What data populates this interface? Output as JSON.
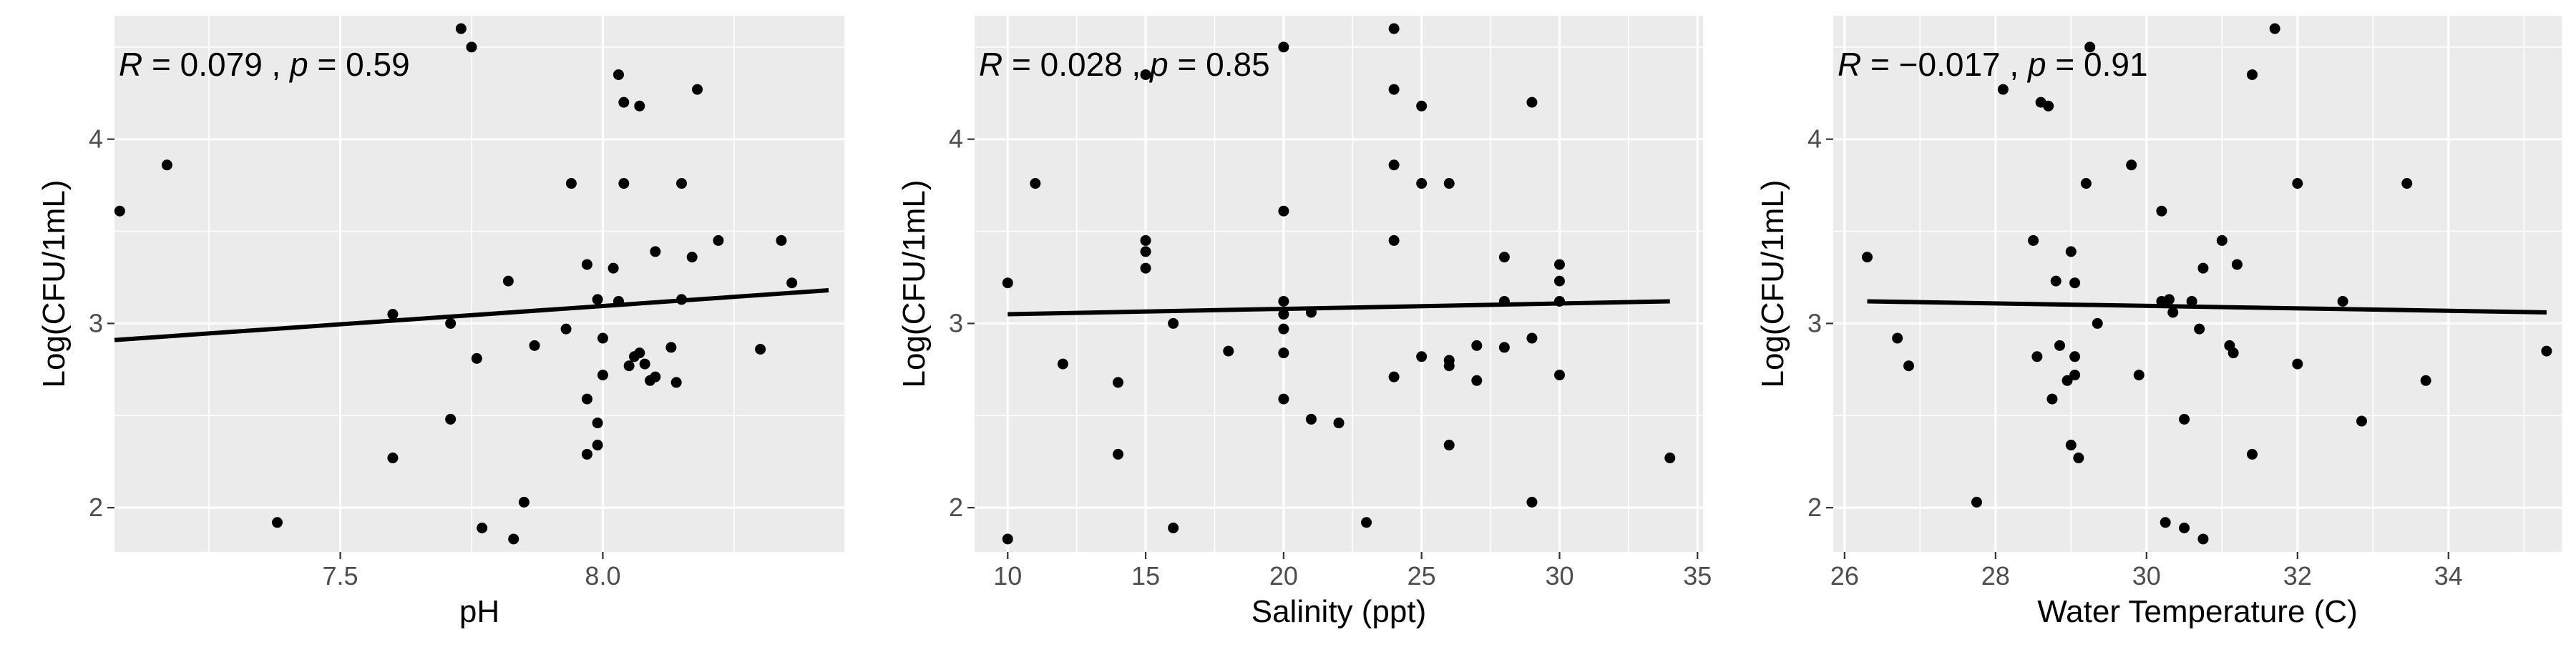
{
  "chart_data": [
    {
      "type": "scatter",
      "xlabel": "pH",
      "ylabel": "Log(CFU/1mL)",
      "annotation": {
        "r_label": "R",
        "r_value": "= 0.079",
        "sep": " , ",
        "p_label": "p",
        "p_value": "= 0.59"
      },
      "xlim": [
        7.07,
        8.46
      ],
      "ylim": [
        1.76,
        4.67
      ],
      "x_ticks": [
        7.5,
        8.0
      ],
      "x_tick_labels": [
        "7.5",
        "8.0"
      ],
      "y_ticks": [
        2,
        3,
        4
      ],
      "y_tick_labels": [
        "2",
        "3",
        "4"
      ],
      "grid": true,
      "fit_line": {
        "x": [
          7.07,
          8.43
        ],
        "y": [
          2.91,
          3.18
        ]
      },
      "points": [
        [
          7.08,
          3.61
        ],
        [
          7.17,
          3.86
        ],
        [
          7.38,
          1.92
        ],
        [
          7.6,
          3.05
        ],
        [
          7.6,
          2.27
        ],
        [
          7.71,
          3.0
        ],
        [
          7.71,
          2.48
        ],
        [
          7.73,
          4.6
        ],
        [
          7.75,
          4.5
        ],
        [
          7.76,
          2.81
        ],
        [
          7.77,
          1.89
        ],
        [
          7.82,
          3.23
        ],
        [
          7.83,
          1.83
        ],
        [
          7.85,
          2.03
        ],
        [
          7.87,
          2.88
        ],
        [
          7.93,
          2.97
        ],
        [
          7.94,
          3.76
        ],
        [
          7.97,
          3.32
        ],
        [
          7.97,
          2.59
        ],
        [
          7.97,
          2.29
        ],
        [
          7.99,
          3.13
        ],
        [
          7.99,
          2.46
        ],
        [
          7.99,
          2.34
        ],
        [
          8.0,
          2.92
        ],
        [
          8.0,
          2.72
        ],
        [
          8.02,
          3.3
        ],
        [
          8.03,
          4.35
        ],
        [
          8.03,
          3.12
        ],
        [
          8.04,
          4.2
        ],
        [
          8.04,
          3.76
        ],
        [
          8.05,
          2.77
        ],
        [
          8.06,
          2.82
        ],
        [
          8.07,
          4.18
        ],
        [
          8.07,
          2.84
        ],
        [
          8.08,
          2.78
        ],
        [
          8.09,
          2.69
        ],
        [
          8.1,
          3.39
        ],
        [
          8.1,
          2.71
        ],
        [
          8.13,
          2.87
        ],
        [
          8.14,
          2.68
        ],
        [
          8.15,
          3.76
        ],
        [
          8.15,
          3.13
        ],
        [
          8.17,
          3.36
        ],
        [
          8.18,
          4.27
        ],
        [
          8.22,
          3.45
        ],
        [
          8.3,
          2.86
        ],
        [
          8.34,
          3.45
        ],
        [
          8.36,
          3.22
        ]
      ]
    },
    {
      "type": "scatter",
      "xlabel": "Salinity (ppt)",
      "ylabel": "Log(CFU/1mL)",
      "annotation": {
        "r_label": "R",
        "r_value": "= 0.028",
        "sep": " , ",
        "p_label": "p",
        "p_value": "= 0.85"
      },
      "xlim": [
        8.8,
        35.2
      ],
      "ylim": [
        1.76,
        4.67
      ],
      "x_ticks": [
        10,
        15,
        20,
        25,
        30,
        35
      ],
      "x_tick_labels": [
        "10",
        "15",
        "20",
        "25",
        "30",
        "35"
      ],
      "y_ticks": [
        2,
        3,
        4
      ],
      "y_tick_labels": [
        "2",
        "3",
        "4"
      ],
      "grid": true,
      "fit_line": {
        "x": [
          10,
          34
        ],
        "y": [
          3.05,
          3.12
        ]
      },
      "points": [
        [
          10,
          3.22
        ],
        [
          10,
          1.83
        ],
        [
          11,
          3.76
        ],
        [
          12,
          2.78
        ],
        [
          14,
          2.68
        ],
        [
          14,
          2.29
        ],
        [
          15,
          4.35
        ],
        [
          15,
          3.45
        ],
        [
          15,
          3.39
        ],
        [
          15,
          3.3
        ],
        [
          16,
          3.0
        ],
        [
          16,
          1.89
        ],
        [
          18,
          2.85
        ],
        [
          20,
          4.5
        ],
        [
          20,
          3.61
        ],
        [
          20,
          3.12
        ],
        [
          20,
          3.05
        ],
        [
          20,
          2.97
        ],
        [
          20,
          2.84
        ],
        [
          20,
          2.59
        ],
        [
          21,
          3.06
        ],
        [
          21,
          2.48
        ],
        [
          22,
          2.46
        ],
        [
          23,
          1.92
        ],
        [
          24,
          4.6
        ],
        [
          24,
          4.27
        ],
        [
          24,
          3.86
        ],
        [
          24,
          3.45
        ],
        [
          24,
          2.71
        ],
        [
          25,
          4.18
        ],
        [
          25,
          3.76
        ],
        [
          25,
          2.82
        ],
        [
          26,
          3.76
        ],
        [
          26,
          2.8
        ],
        [
          26,
          2.77
        ],
        [
          26,
          2.34
        ],
        [
          27,
          2.88
        ],
        [
          27,
          2.69
        ],
        [
          28,
          3.36
        ],
        [
          28,
          3.12
        ],
        [
          28,
          2.87
        ],
        [
          29,
          4.2
        ],
        [
          29,
          2.92
        ],
        [
          29,
          2.03
        ],
        [
          30,
          3.32
        ],
        [
          30,
          3.23
        ],
        [
          30,
          3.12
        ],
        [
          30,
          2.72
        ],
        [
          34,
          2.27
        ]
      ]
    },
    {
      "type": "scatter",
      "xlabel": "Water Temperature (C)",
      "ylabel": "Log(CFU/1mL)",
      "annotation": {
        "r_label": "R",
        "r_value": "= −0.017",
        "sep": " , ",
        "p_label": "p",
        "p_value": "= 0.91"
      },
      "xlim": [
        25.85,
        35.5
      ],
      "ylim": [
        1.76,
        4.67
      ],
      "x_ticks": [
        26,
        28,
        30,
        32,
        34
      ],
      "x_tick_labels": [
        "26",
        "28",
        "30",
        "32",
        "34"
      ],
      "y_ticks": [
        2,
        3,
        4
      ],
      "y_tick_labels": [
        "2",
        "3",
        "4"
      ],
      "grid": true,
      "fit_line": {
        "x": [
          26.3,
          35.3
        ],
        "y": [
          3.12,
          3.06
        ]
      },
      "points": [
        [
          26.3,
          3.36
        ],
        [
          26.7,
          2.92
        ],
        [
          26.85,
          2.77
        ],
        [
          27.75,
          2.03
        ],
        [
          28.1,
          4.27
        ],
        [
          28.5,
          3.45
        ],
        [
          28.55,
          2.82
        ],
        [
          28.6,
          4.2
        ],
        [
          28.7,
          4.18
        ],
        [
          28.75,
          2.59
        ],
        [
          28.8,
          3.23
        ],
        [
          28.85,
          2.88
        ],
        [
          28.95,
          2.69
        ],
        [
          29.0,
          3.39
        ],
        [
          29.0,
          2.34
        ],
        [
          29.05,
          3.22
        ],
        [
          29.05,
          2.82
        ],
        [
          29.05,
          2.72
        ],
        [
          29.1,
          2.27
        ],
        [
          29.2,
          3.76
        ],
        [
          29.25,
          4.5
        ],
        [
          29.35,
          3.0
        ],
        [
          29.8,
          3.86
        ],
        [
          29.9,
          2.72
        ],
        [
          30.2,
          3.61
        ],
        [
          30.2,
          3.12
        ],
        [
          30.25,
          1.92
        ],
        [
          30.3,
          3.13
        ],
        [
          30.35,
          3.06
        ],
        [
          30.5,
          2.48
        ],
        [
          30.5,
          1.89
        ],
        [
          30.6,
          3.12
        ],
        [
          30.7,
          2.97
        ],
        [
          30.75,
          1.83
        ],
        [
          30.75,
          3.3
        ],
        [
          31.0,
          3.45
        ],
        [
          31.1,
          2.88
        ],
        [
          31.15,
          2.84
        ],
        [
          31.2,
          3.32
        ],
        [
          31.4,
          4.35
        ],
        [
          31.4,
          2.29
        ],
        [
          31.7,
          4.6
        ],
        [
          32.0,
          3.76
        ],
        [
          32.0,
          2.78
        ],
        [
          32.6,
          3.12
        ],
        [
          32.85,
          2.47
        ],
        [
          33.45,
          3.76
        ],
        [
          33.7,
          2.69
        ],
        [
          35.3,
          2.85
        ]
      ]
    }
  ]
}
